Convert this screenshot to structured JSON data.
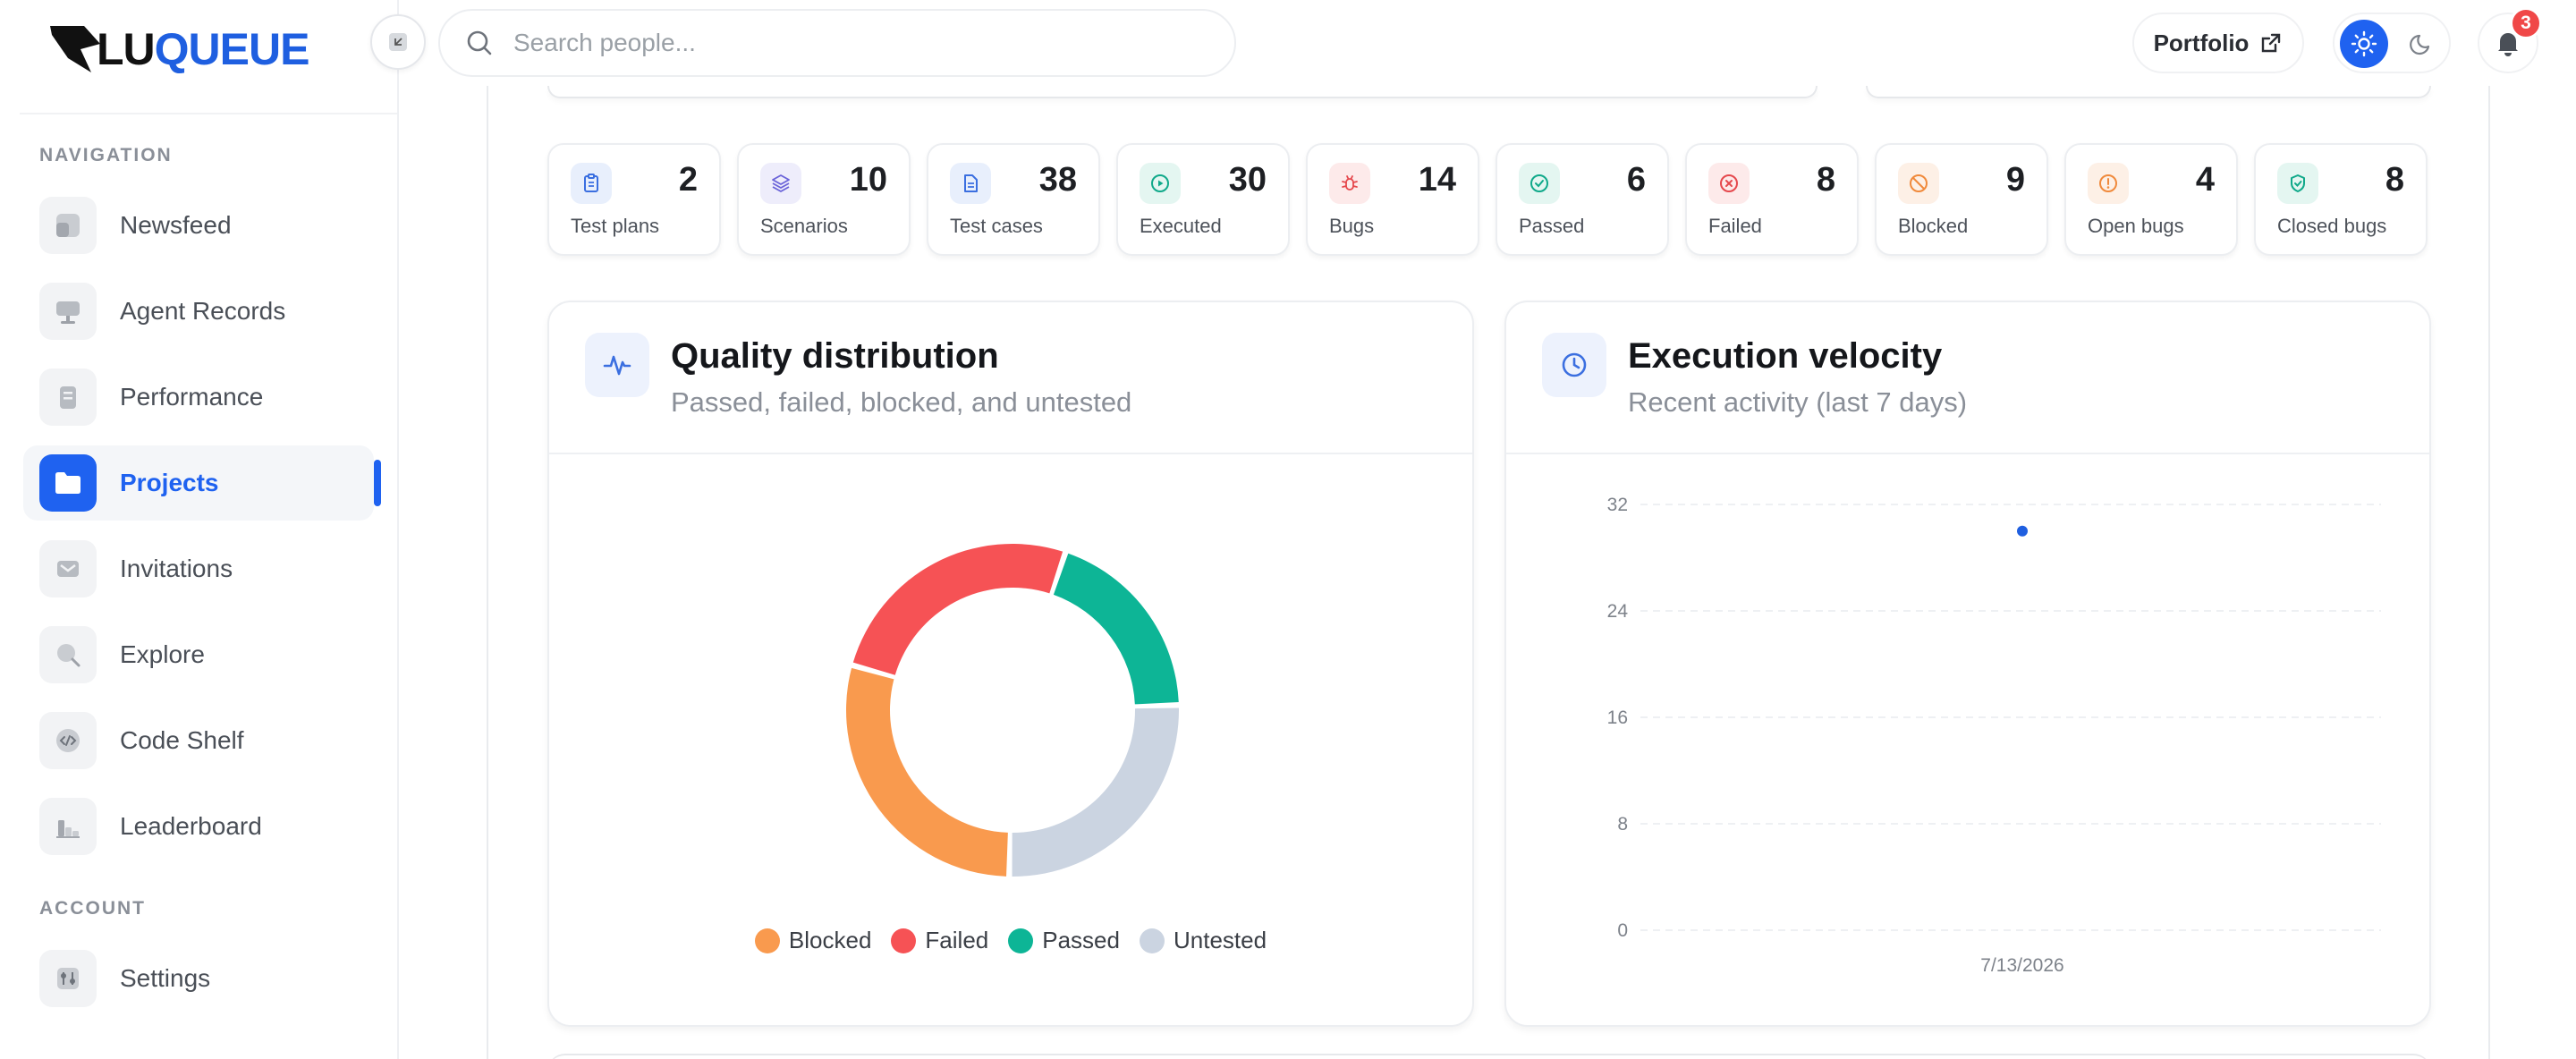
{
  "brand": {
    "name_part1": "LU",
    "name_part2": "QUEUE",
    "accent": "#1f5fe0"
  },
  "search": {
    "placeholder": "Search people..."
  },
  "header": {
    "portfolio_label": "Portfolio",
    "notifications_count": "3"
  },
  "sidebar": {
    "sections": [
      {
        "label": "NAVIGATION"
      },
      {
        "label": "ACCOUNT"
      }
    ],
    "items": [
      {
        "label": "Newsfeed",
        "icon": "newsfeed-icon"
      },
      {
        "label": "Agent Records",
        "icon": "agent-records-icon"
      },
      {
        "label": "Performance",
        "icon": "performance-icon"
      },
      {
        "label": "Projects",
        "icon": "folder-icon",
        "active": true
      },
      {
        "label": "Invitations",
        "icon": "mail-icon"
      },
      {
        "label": "Explore",
        "icon": "explore-icon"
      },
      {
        "label": "Code Shelf",
        "icon": "code-icon"
      },
      {
        "label": "Leaderboard",
        "icon": "leaderboard-icon"
      },
      {
        "label": "Settings",
        "icon": "settings-icon"
      }
    ]
  },
  "stats": [
    {
      "value": "2",
      "label": "Test plans",
      "icon": "clipboard-icon",
      "color": "#3b6fe0",
      "bg": "#e8effc"
    },
    {
      "value": "10",
      "label": "Scenarios",
      "icon": "layers-icon",
      "color": "#6a63d9",
      "bg": "#eeedfb"
    },
    {
      "value": "38",
      "label": "Test cases",
      "icon": "document-icon",
      "color": "#3b6fe0",
      "bg": "#e8effc"
    },
    {
      "value": "30",
      "label": "Executed",
      "icon": "play-icon",
      "color": "#10a98a",
      "bg": "#e4f6f1"
    },
    {
      "value": "14",
      "label": "Bugs",
      "icon": "bug-icon",
      "color": "#e5484d",
      "bg": "#fdeaea"
    },
    {
      "value": "6",
      "label": "Passed",
      "icon": "check-circle-icon",
      "color": "#10a98a",
      "bg": "#e4f6f1"
    },
    {
      "value": "8",
      "label": "Failed",
      "icon": "x-circle-icon",
      "color": "#e5484d",
      "bg": "#fdeaea"
    },
    {
      "value": "9",
      "label": "Blocked",
      "icon": "ban-icon",
      "color": "#f08a3c",
      "bg": "#fdf0e6"
    },
    {
      "value": "4",
      "label": "Open bugs",
      "icon": "alert-circle-icon",
      "color": "#f08a3c",
      "bg": "#fdf0e6"
    },
    {
      "value": "8",
      "label": "Closed bugs",
      "icon": "shield-check-icon",
      "color": "#10a98a",
      "bg": "#e4f6f1"
    }
  ],
  "quality_panel": {
    "title": "Quality distribution",
    "subtitle": "Passed, failed, blocked, and untested",
    "icon": "activity-icon"
  },
  "velocity_panel": {
    "title": "Execution velocity",
    "subtitle": "Recent activity (last 7 days)",
    "icon": "clock-icon"
  },
  "chart_data": [
    {
      "type": "pie",
      "variant": "donut",
      "series": [
        {
          "name": "Blocked",
          "value": 9,
          "color": "#f99a4e"
        },
        {
          "name": "Failed",
          "value": 8,
          "color": "#f65255"
        },
        {
          "name": "Passed",
          "value": 6,
          "color": "#0db596"
        },
        {
          "name": "Untested",
          "value": 8,
          "color": "#cbd4e1"
        }
      ],
      "legend": "bottom"
    },
    {
      "type": "scatter",
      "x": [
        "7/13/2026"
      ],
      "y": [
        30
      ],
      "ylim": [
        0,
        32
      ],
      "yticks": [
        0,
        8,
        16,
        24,
        32
      ],
      "xticks": [
        "7/13/2026"
      ],
      "grid": true,
      "color": "#1f5fe0"
    }
  ]
}
